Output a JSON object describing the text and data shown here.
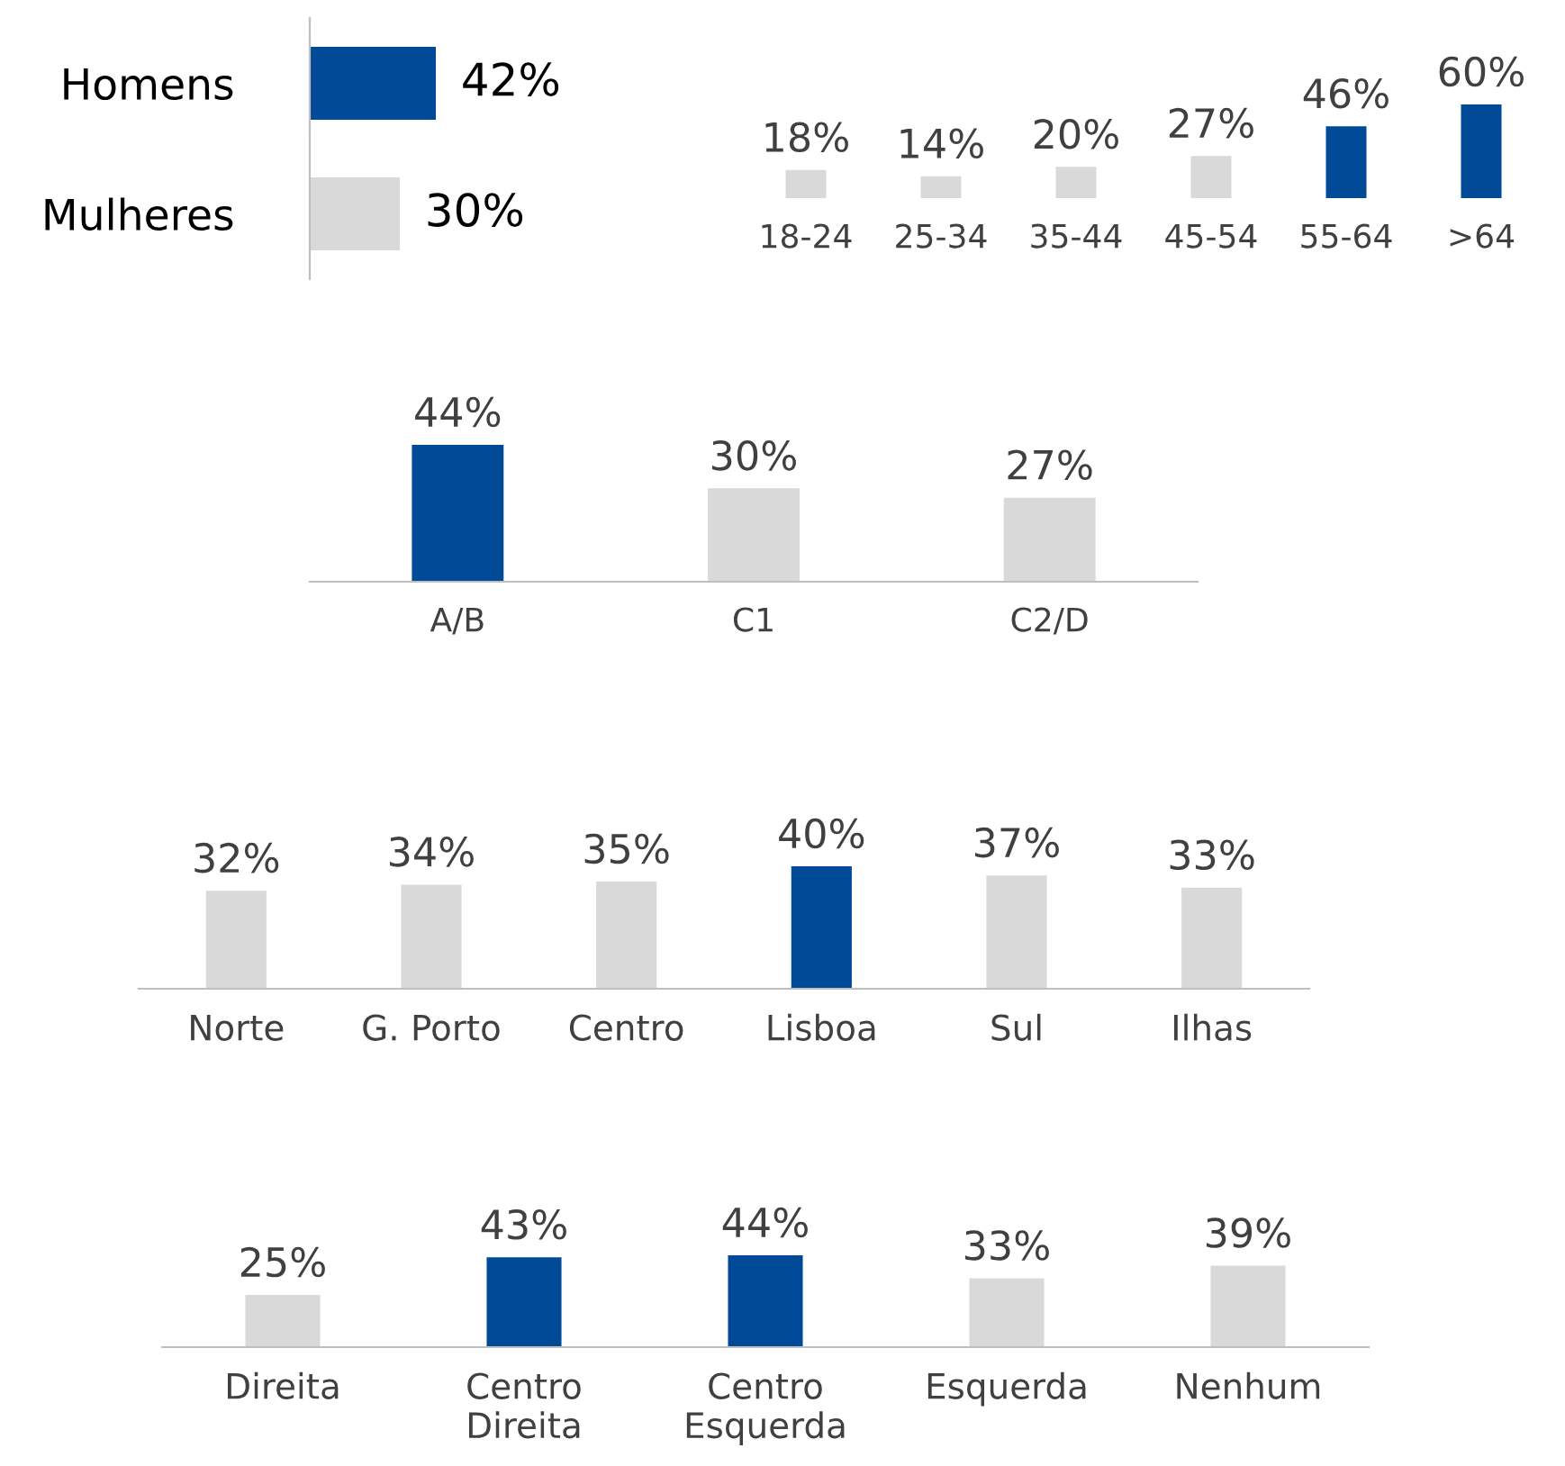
{
  "chart_data": [
    {
      "type": "bar",
      "orientation": "horizontal",
      "categories": [
        "Homens",
        "Mulheres"
      ],
      "values": [
        42,
        30
      ],
      "colors": [
        "#004a97",
        "#d9d9d9"
      ],
      "value_labels": [
        "42%",
        "30%"
      ]
    },
    {
      "type": "bar",
      "categories": [
        "18-24",
        "25-34",
        "35-44",
        "45-54",
        "55-64",
        ">64"
      ],
      "values": [
        18,
        14,
        20,
        27,
        46,
        60
      ],
      "colors": [
        "#d9d9d9",
        "#d9d9d9",
        "#d9d9d9",
        "#d9d9d9",
        "#004a97",
        "#004a97"
      ],
      "value_labels": [
        "18%",
        "14%",
        "20%",
        "27%",
        "46%",
        "60%"
      ]
    },
    {
      "type": "bar",
      "categories": [
        "A/B",
        "C1",
        "C2/D"
      ],
      "values": [
        44,
        30,
        27
      ],
      "colors": [
        "#004a97",
        "#d9d9d9",
        "#d9d9d9"
      ],
      "value_labels": [
        "44%",
        "30%",
        "27%"
      ]
    },
    {
      "type": "bar",
      "categories": [
        "Norte",
        "G. Porto",
        "Centro",
        "Lisboa",
        "Sul",
        "Ilhas"
      ],
      "values": [
        32,
        34,
        35,
        40,
        37,
        33
      ],
      "colors": [
        "#d9d9d9",
        "#d9d9d9",
        "#d9d9d9",
        "#004a97",
        "#d9d9d9",
        "#d9d9d9"
      ],
      "value_labels": [
        "32%",
        "34%",
        "35%",
        "40%",
        "37%",
        "33%"
      ]
    },
    {
      "type": "bar",
      "categories": [
        "Direita",
        "Centro\nDireita",
        "Centro\nEsquerda",
        "Esquerda",
        "Nenhum"
      ],
      "values": [
        25,
        43,
        44,
        33,
        39
      ],
      "colors": [
        "#d9d9d9",
        "#004a97",
        "#004a97",
        "#d9d9d9",
        "#d9d9d9"
      ],
      "value_labels": [
        "25%",
        "43%",
        "44%",
        "33%",
        "39%"
      ]
    }
  ]
}
